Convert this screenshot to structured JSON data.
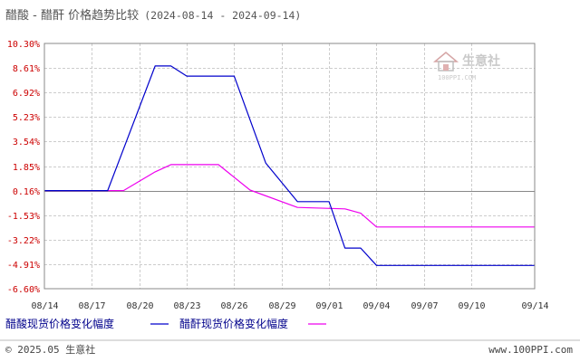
{
  "chart_data": {
    "type": "line",
    "title": "醋酸 - 醋酐 价格趋势比较",
    "period": "(2024-08-14 - 2024-09-14)",
    "y_ticks": [
      "10.30%",
      "8.61%",
      "6.92%",
      "5.23%",
      "3.54%",
      "1.85%",
      "0.16%",
      "-1.53%",
      "-3.22%",
      "-4.91%",
      "-6.60%"
    ],
    "x_ticks": [
      "08/14",
      "08/17",
      "08/20",
      "08/23",
      "08/26",
      "08/29",
      "09/01",
      "09/04",
      "09/07",
      "09/10",
      "09/14"
    ],
    "ylim": [
      -6.6,
      10.3
    ],
    "grid": true,
    "legend_position": "bottom",
    "series": [
      {
        "name": "醋酸现货价格变化幅度",
        "color": "#0000cc",
        "points": [
          [
            "08/14",
            0.16
          ],
          [
            "08/18",
            0.16
          ],
          [
            "08/21",
            8.75
          ],
          [
            "08/22",
            8.75
          ],
          [
            "08/23",
            8.05
          ],
          [
            "08/26",
            8.05
          ],
          [
            "08/28",
            2.05
          ],
          [
            "08/30",
            -0.6
          ],
          [
            "09/01",
            -0.6
          ],
          [
            "09/02",
            -3.8
          ],
          [
            "09/03",
            -3.8
          ],
          [
            "09/04",
            -5.0
          ],
          [
            "09/14",
            -5.0
          ]
        ]
      },
      {
        "name": "醋酐现货价格变化幅度",
        "color": "#ee00ee",
        "points": [
          [
            "08/14",
            0.16
          ],
          [
            "08/19",
            0.16
          ],
          [
            "08/21",
            1.45
          ],
          [
            "08/22",
            1.95
          ],
          [
            "08/25",
            1.95
          ],
          [
            "08/27",
            0.2
          ],
          [
            "08/30",
            -1.0
          ],
          [
            "09/02",
            -1.1
          ],
          [
            "09/03",
            -1.4
          ],
          [
            "09/04",
            -2.35
          ],
          [
            "09/14",
            -2.35
          ]
        ]
      }
    ]
  },
  "footer": {
    "copyright": "© 2025.05 生意社",
    "site": "www.100PPI.com"
  },
  "watermark": {
    "text": "生意社",
    "sub": "100PPI.COM"
  }
}
